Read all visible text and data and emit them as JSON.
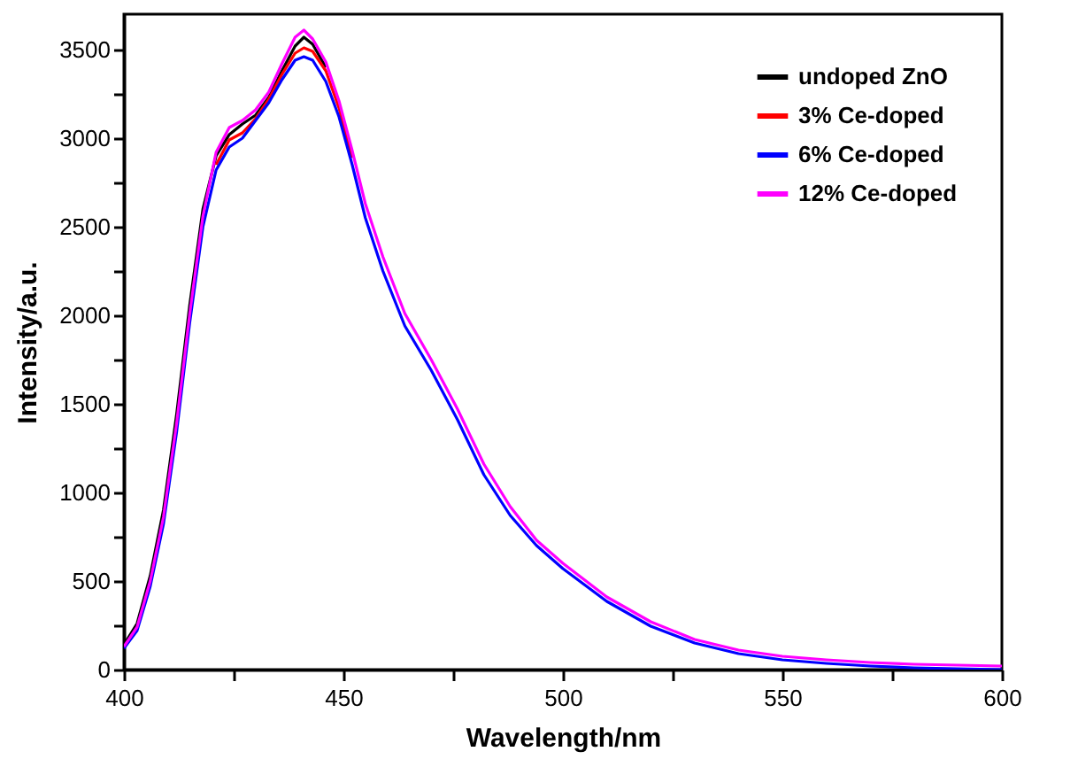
{
  "chart_data": {
    "type": "line",
    "xlabel": "Wavelength/nm",
    "ylabel": "Intensity/a.u.",
    "x": [
      400,
      403,
      406,
      409,
      412,
      415,
      418,
      421,
      424,
      427,
      430,
      433,
      436,
      439,
      441,
      443,
      446,
      449,
      452,
      455,
      459,
      464,
      470,
      476,
      482,
      488,
      494,
      500,
      510,
      520,
      530,
      540,
      550,
      560,
      570,
      580,
      590,
      600
    ],
    "series": [
      {
        "name": "undoped ZnO",
        "color": "#000000",
        "values": [
          140,
          260,
          530,
          900,
          1440,
          2060,
          2600,
          2900,
          3020,
          3080,
          3130,
          3230,
          3380,
          3520,
          3570,
          3530,
          3400,
          null,
          null,
          null,
          null,
          null,
          null,
          null,
          null,
          null,
          null,
          null,
          null,
          null,
          null,
          null,
          null,
          null,
          null,
          null,
          null,
          null
        ]
      },
      {
        "name": "3% Ce-doped",
        "color": "#ff0000",
        "values": [
          null,
          null,
          null,
          null,
          null,
          null,
          null,
          2850,
          2990,
          3030,
          3110,
          3220,
          3360,
          3480,
          3510,
          3490,
          3380,
          3170,
          2890,
          null,
          null,
          null,
          null,
          null,
          null,
          null,
          null,
          null,
          null,
          null,
          null,
          null,
          null,
          null,
          null,
          null,
          null,
          null
        ]
      },
      {
        "name": "6% Ce-doped",
        "color": "#0000ff",
        "values": [
          120,
          220,
          470,
          820,
          1340,
          1960,
          2500,
          2820,
          2950,
          3000,
          3100,
          3200,
          3330,
          3440,
          3460,
          3440,
          3320,
          3120,
          2850,
          2550,
          2250,
          1940,
          1690,
          1410,
          1100,
          870,
          700,
          570,
          385,
          245,
          150,
          90,
          55,
          35,
          20,
          10,
          5,
          0
        ]
      },
      {
        "name": "12% Ce-doped",
        "color": "#ff00ff",
        "values": [
          130,
          240,
          500,
          860,
          1390,
          2010,
          2560,
          2920,
          3060,
          3100,
          3160,
          3260,
          3420,
          3570,
          3610,
          3560,
          3430,
          3210,
          2930,
          2630,
          2330,
          2010,
          1750,
          1470,
          1160,
          920,
          730,
          600,
          410,
          270,
          170,
          110,
          75,
          55,
          40,
          30,
          25,
          20
        ]
      }
    ],
    "xlim": [
      400,
      600
    ],
    "ylim": [
      0,
      3700
    ],
    "xticks": [
      400,
      {
        "value": 425,
        "label": null
      },
      450,
      {
        "value": 475,
        "label": null
      },
      500,
      {
        "value": 525,
        "label": null
      },
      550,
      {
        "value": 575,
        "label": null
      },
      600
    ],
    "yticks": [
      0,
      {
        "value": 250,
        "label": null
      },
      500,
      {
        "value": 750,
        "label": null
      },
      1000,
      {
        "value": 1250,
        "label": null
      },
      1500,
      {
        "value": 1750,
        "label": null
      },
      2000,
      {
        "value": 2250,
        "label": null
      },
      2500,
      {
        "value": 2750,
        "label": null
      },
      3000,
      {
        "value": 3250,
        "label": null
      },
      3500
    ],
    "legend": "top right",
    "line_style": "solid"
  }
}
